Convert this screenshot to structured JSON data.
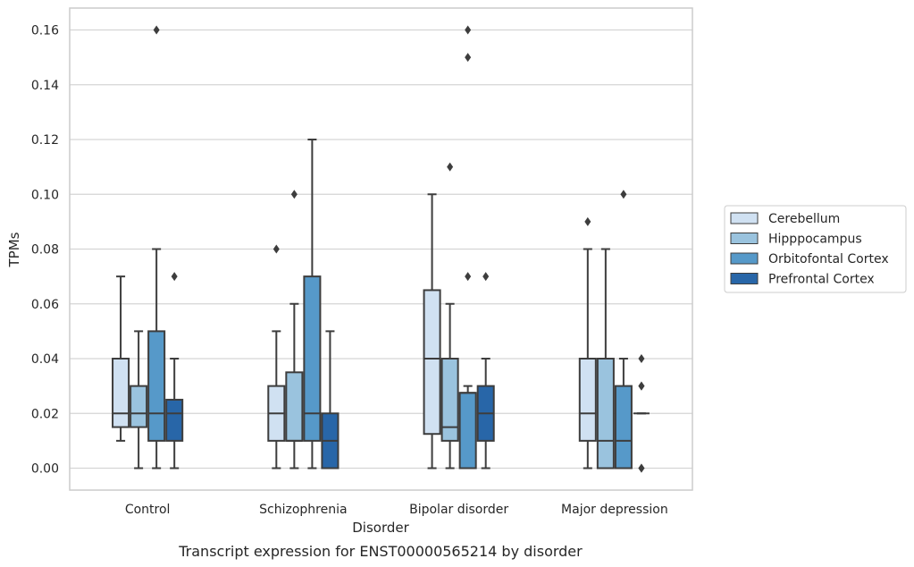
{
  "chart_data": {
    "type": "box",
    "title": "",
    "caption": "Transcript expression for ENST00000565214 by disorder",
    "xlabel": "Disorder",
    "ylabel": "TPMs",
    "ylim": [
      -0.008,
      0.168
    ],
    "yticks": [
      "0.00",
      "0.02",
      "0.04",
      "0.06",
      "0.08",
      "0.10",
      "0.12",
      "0.14",
      "0.16"
    ],
    "grid": "horizontal",
    "legend_position": "right",
    "categories": [
      "Control",
      "Schizophrenia",
      "Bipolar disorder",
      "Major depression"
    ],
    "series": [
      {
        "name": "Cerebellum",
        "color": "#d0e1f2",
        "boxes": [
          {
            "min": 0.01,
            "q1": 0.015,
            "median": 0.02,
            "q3": 0.04,
            "max": 0.07,
            "outliers": []
          },
          {
            "min": 0.0,
            "q1": 0.01,
            "median": 0.02,
            "q3": 0.03,
            "max": 0.05,
            "outliers": [
              0.08
            ]
          },
          {
            "min": 0.0,
            "q1": 0.0125,
            "median": 0.04,
            "q3": 0.065,
            "max": 0.1,
            "outliers": []
          },
          {
            "min": 0.0,
            "q1": 0.01,
            "median": 0.02,
            "q3": 0.04,
            "max": 0.08,
            "outliers": [
              0.09
            ]
          }
        ]
      },
      {
        "name": "Hipppocampus",
        "color": "#9ac3de",
        "boxes": [
          {
            "min": 0.0,
            "q1": 0.015,
            "median": 0.02,
            "q3": 0.03,
            "max": 0.05,
            "outliers": []
          },
          {
            "min": 0.0,
            "q1": 0.01,
            "median": 0.01,
            "q3": 0.035,
            "max": 0.06,
            "outliers": [
              0.1
            ]
          },
          {
            "min": 0.0,
            "q1": 0.01,
            "median": 0.015,
            "q3": 0.04,
            "max": 0.06,
            "outliers": [
              0.11
            ]
          },
          {
            "min": 0.0,
            "q1": 0.0,
            "median": 0.01,
            "q3": 0.04,
            "max": 0.08,
            "outliers": []
          }
        ]
      },
      {
        "name": "Orbitofontal Cortex",
        "color": "#5699c9",
        "boxes": [
          {
            "min": 0.0,
            "q1": 0.01,
            "median": 0.02,
            "q3": 0.05,
            "max": 0.08,
            "outliers": [
              0.16
            ]
          },
          {
            "min": 0.0,
            "q1": 0.01,
            "median": 0.02,
            "q3": 0.07,
            "max": 0.12,
            "outliers": []
          },
          {
            "min": 0.0,
            "q1": 0.0,
            "median": 0.0275,
            "q3": 0.0275,
            "max": 0.03,
            "outliers": [
              0.07,
              0.15,
              0.16
            ]
          },
          {
            "min": 0.0,
            "q1": 0.0,
            "median": 0.01,
            "q3": 0.03,
            "max": 0.04,
            "outliers": [
              0.1
            ]
          }
        ]
      },
      {
        "name": "Prefrontal Cortex",
        "color": "#2866a8",
        "boxes": [
          {
            "min": 0.0,
            "q1": 0.01,
            "median": 0.02,
            "q3": 0.025,
            "max": 0.04,
            "outliers": [
              0.07
            ]
          },
          {
            "min": 0.0,
            "q1": 0.0,
            "median": 0.01,
            "q3": 0.02,
            "max": 0.05,
            "outliers": []
          },
          {
            "min": 0.0,
            "q1": 0.01,
            "median": 0.02,
            "q3": 0.03,
            "max": 0.04,
            "outliers": [
              0.07
            ]
          },
          {
            "min": 0.02,
            "q1": 0.02,
            "median": 0.02,
            "q3": 0.02,
            "max": 0.02,
            "outliers": [
              0.0,
              0.0,
              0.03,
              0.03,
              0.04
            ]
          }
        ]
      }
    ]
  }
}
